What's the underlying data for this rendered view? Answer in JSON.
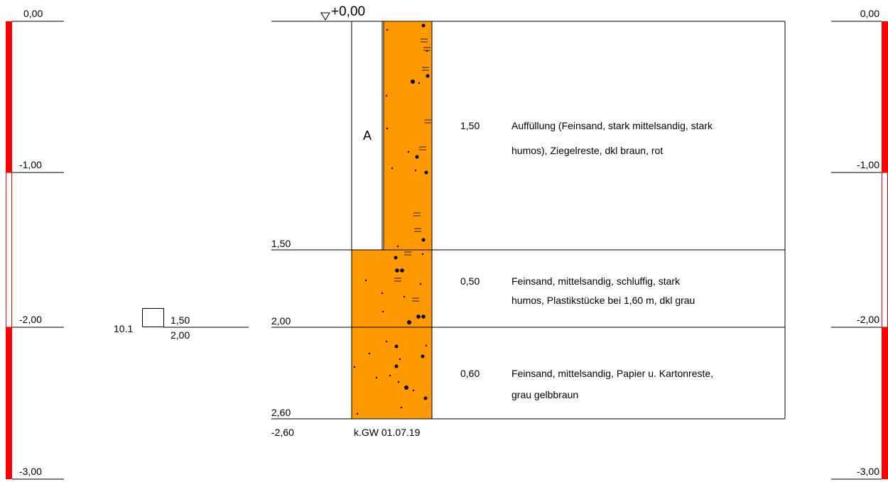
{
  "scale_left": {
    "labels": [
      "0,00",
      "-1,00",
      "-2,00",
      "-3,00"
    ]
  },
  "scale_right": {
    "labels": [
      "0,00",
      "-1,00",
      "-2,00",
      "-3,00"
    ]
  },
  "top_level": "+0,00",
  "fill_label": "A",
  "layers": [
    {
      "depth": "1,50",
      "thickness": "1,50",
      "description": [
        "Auffüllung (Feinsand, stark mittelsandig, stark",
        "humos), Ziegelreste, dkl braun, rot"
      ]
    },
    {
      "depth": "2,00",
      "thickness": "0,50",
      "description": [
        "Feinsand, mittelsandig, schluffig, stark",
        "humos,  Plastikstücke bei 1,60 m, dkl grau"
      ]
    },
    {
      "depth": "2,60",
      "thickness": "0,60",
      "description": [
        "Feinsand, mittelsandig, Papier u. Kartonreste,",
        "grau gelbbraun"
      ]
    }
  ],
  "sample": {
    "id": "10.1",
    "top": "1,50",
    "bottom": "2,00"
  },
  "bottom_level": "-2,60",
  "groundwater": "k.GW 01.07.19"
}
